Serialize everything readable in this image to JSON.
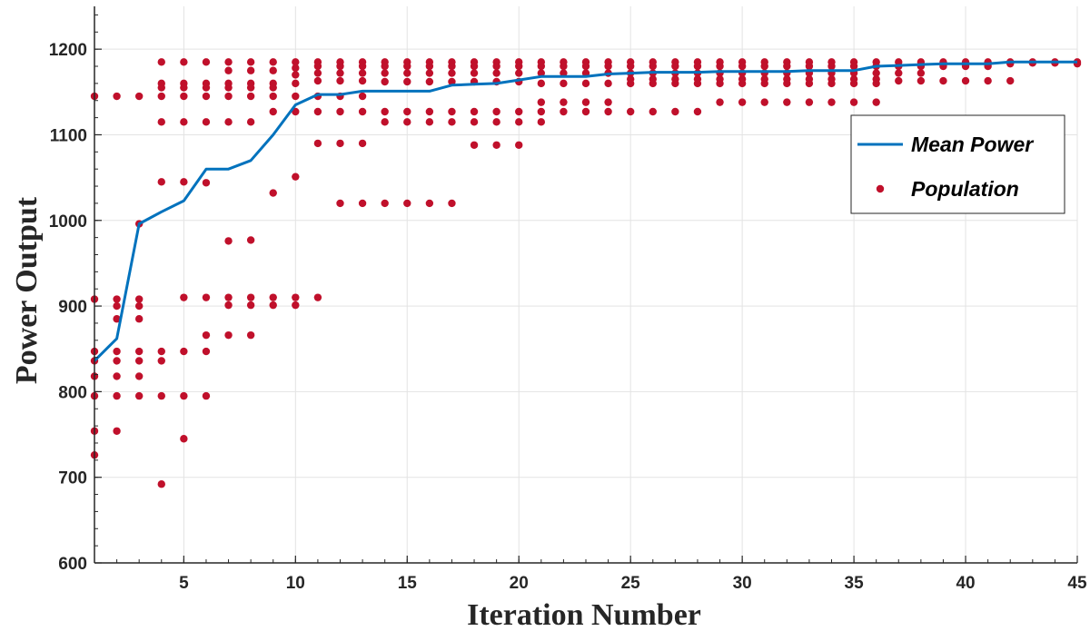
{
  "chart_data": {
    "type": "scatter",
    "xlabel": "Iteration Number",
    "ylabel": "Power Output",
    "xlim": [
      1,
      45
    ],
    "ylim": [
      600,
      1250
    ],
    "xticks": [
      5,
      10,
      15,
      20,
      25,
      30,
      35,
      40,
      45
    ],
    "yticks": [
      600,
      700,
      800,
      900,
      1000,
      1100,
      1200
    ],
    "grid": true,
    "legend_position": "right",
    "series": [
      {
        "name": "Mean Power",
        "kind": "line",
        "color": "#0072BD",
        "x": [
          1,
          2,
          3,
          4,
          5,
          6,
          7,
          8,
          9,
          10,
          11,
          12,
          13,
          14,
          15,
          16,
          17,
          18,
          19,
          20,
          21,
          22,
          23,
          24,
          25,
          26,
          27,
          28,
          29,
          30,
          31,
          32,
          33,
          34,
          35,
          36,
          37,
          38,
          39,
          40,
          41,
          42,
          43,
          44,
          45
        ],
        "y": [
          836,
          862,
          996,
          1010,
          1023,
          1060,
          1060,
          1070,
          1100,
          1135,
          1147,
          1147,
          1151,
          1151,
          1151,
          1151,
          1158,
          1159,
          1160,
          1164,
          1168,
          1168,
          1168,
          1171,
          1172,
          1173,
          1173,
          1173,
          1174,
          1174,
          1174,
          1174,
          1175,
          1175,
          1175,
          1180,
          1181,
          1182,
          1183,
          1183,
          1183,
          1185,
          1185,
          1185,
          1185
        ]
      },
      {
        "name": "Population",
        "kind": "scatter",
        "color": "#C0102B",
        "points": [
          [
            1,
            1145
          ],
          [
            1,
            908
          ],
          [
            1,
            847
          ],
          [
            1,
            836
          ],
          [
            1,
            818
          ],
          [
            1,
            795
          ],
          [
            1,
            754
          ],
          [
            1,
            726
          ],
          [
            2,
            1145
          ],
          [
            2,
            908
          ],
          [
            2,
            900
          ],
          [
            2,
            885
          ],
          [
            2,
            847
          ],
          [
            2,
            836
          ],
          [
            2,
            818
          ],
          [
            2,
            795
          ],
          [
            2,
            754
          ],
          [
            3,
            1145
          ],
          [
            3,
            996
          ],
          [
            3,
            908
          ],
          [
            3,
            900
          ],
          [
            3,
            885
          ],
          [
            3,
            847
          ],
          [
            3,
            836
          ],
          [
            3,
            818
          ],
          [
            3,
            795
          ],
          [
            4,
            1185
          ],
          [
            4,
            1160
          ],
          [
            4,
            1155
          ],
          [
            4,
            1145
          ],
          [
            4,
            1115
          ],
          [
            4,
            1045
          ],
          [
            4,
            847
          ],
          [
            4,
            836
          ],
          [
            4,
            795
          ],
          [
            4,
            692
          ],
          [
            5,
            1185
          ],
          [
            5,
            1160
          ],
          [
            5,
            1155
          ],
          [
            5,
            1145
          ],
          [
            5,
            1115
          ],
          [
            5,
            1045
          ],
          [
            5,
            910
          ],
          [
            5,
            847
          ],
          [
            5,
            795
          ],
          [
            5,
            745
          ],
          [
            6,
            1185
          ],
          [
            6,
            1160
          ],
          [
            6,
            1155
          ],
          [
            6,
            1145
          ],
          [
            6,
            1115
          ],
          [
            6,
            1044
          ],
          [
            6,
            910
          ],
          [
            6,
            866
          ],
          [
            6,
            847
          ],
          [
            6,
            795
          ],
          [
            7,
            1185
          ],
          [
            7,
            1175
          ],
          [
            7,
            1160
          ],
          [
            7,
            1155
          ],
          [
            7,
            1145
          ],
          [
            7,
            1115
          ],
          [
            7,
            976
          ],
          [
            7,
            910
          ],
          [
            7,
            901
          ],
          [
            7,
            866
          ],
          [
            8,
            1185
          ],
          [
            8,
            1175
          ],
          [
            8,
            1160
          ],
          [
            8,
            1155
          ],
          [
            8,
            1145
          ],
          [
            8,
            1115
          ],
          [
            8,
            977
          ],
          [
            8,
            910
          ],
          [
            8,
            901
          ],
          [
            8,
            866
          ],
          [
            9,
            1185
          ],
          [
            9,
            1175
          ],
          [
            9,
            1160
          ],
          [
            9,
            1155
          ],
          [
            9,
            1145
          ],
          [
            9,
            1127
          ],
          [
            9,
            1032
          ],
          [
            9,
            910
          ],
          [
            9,
            901
          ],
          [
            10,
            1185
          ],
          [
            10,
            1178
          ],
          [
            10,
            1170
          ],
          [
            10,
            1160
          ],
          [
            10,
            1145
          ],
          [
            10,
            1127
          ],
          [
            10,
            1051
          ],
          [
            10,
            910
          ],
          [
            10,
            901
          ],
          [
            11,
            1185
          ],
          [
            11,
            1180
          ],
          [
            11,
            1172
          ],
          [
            11,
            1163
          ],
          [
            11,
            1145
          ],
          [
            11,
            1127
          ],
          [
            11,
            1090
          ],
          [
            11,
            910
          ],
          [
            12,
            1185
          ],
          [
            12,
            1180
          ],
          [
            12,
            1172
          ],
          [
            12,
            1163
          ],
          [
            12,
            1145
          ],
          [
            12,
            1127
          ],
          [
            12,
            1090
          ],
          [
            12,
            1020
          ],
          [
            13,
            1185
          ],
          [
            13,
            1180
          ],
          [
            13,
            1172
          ],
          [
            13,
            1163
          ],
          [
            13,
            1145
          ],
          [
            13,
            1127
          ],
          [
            13,
            1090
          ],
          [
            13,
            1020
          ],
          [
            14,
            1185
          ],
          [
            14,
            1180
          ],
          [
            14,
            1172
          ],
          [
            14,
            1162
          ],
          [
            14,
            1127
          ],
          [
            14,
            1115
          ],
          [
            14,
            1020
          ],
          [
            15,
            1185
          ],
          [
            15,
            1180
          ],
          [
            15,
            1172
          ],
          [
            15,
            1162
          ],
          [
            15,
            1127
          ],
          [
            15,
            1115
          ],
          [
            15,
            1020
          ],
          [
            16,
            1185
          ],
          [
            16,
            1180
          ],
          [
            16,
            1172
          ],
          [
            16,
            1162
          ],
          [
            16,
            1127
          ],
          [
            16,
            1115
          ],
          [
            16,
            1020
          ],
          [
            17,
            1185
          ],
          [
            17,
            1180
          ],
          [
            17,
            1172
          ],
          [
            17,
            1162
          ],
          [
            17,
            1127
          ],
          [
            17,
            1115
          ],
          [
            17,
            1020
          ],
          [
            18,
            1185
          ],
          [
            18,
            1180
          ],
          [
            18,
            1172
          ],
          [
            18,
            1162
          ],
          [
            18,
            1127
          ],
          [
            18,
            1115
          ],
          [
            18,
            1088
          ],
          [
            19,
            1185
          ],
          [
            19,
            1180
          ],
          [
            19,
            1172
          ],
          [
            19,
            1162
          ],
          [
            19,
            1127
          ],
          [
            19,
            1115
          ],
          [
            19,
            1088
          ],
          [
            20,
            1185
          ],
          [
            20,
            1180
          ],
          [
            20,
            1172
          ],
          [
            20,
            1162
          ],
          [
            20,
            1127
          ],
          [
            20,
            1115
          ],
          [
            20,
            1088
          ],
          [
            21,
            1185
          ],
          [
            21,
            1180
          ],
          [
            21,
            1172
          ],
          [
            21,
            1160
          ],
          [
            21,
            1138
          ],
          [
            21,
            1127
          ],
          [
            21,
            1115
          ],
          [
            22,
            1185
          ],
          [
            22,
            1180
          ],
          [
            22,
            1172
          ],
          [
            22,
            1160
          ],
          [
            22,
            1138
          ],
          [
            22,
            1127
          ],
          [
            23,
            1185
          ],
          [
            23,
            1180
          ],
          [
            23,
            1172
          ],
          [
            23,
            1160
          ],
          [
            23,
            1138
          ],
          [
            23,
            1127
          ],
          [
            24,
            1185
          ],
          [
            24,
            1180
          ],
          [
            24,
            1172
          ],
          [
            24,
            1160
          ],
          [
            24,
            1138
          ],
          [
            24,
            1127
          ],
          [
            25,
            1185
          ],
          [
            25,
            1180
          ],
          [
            25,
            1172
          ],
          [
            25,
            1165
          ],
          [
            25,
            1160
          ],
          [
            25,
            1127
          ],
          [
            26,
            1185
          ],
          [
            26,
            1180
          ],
          [
            26,
            1172
          ],
          [
            26,
            1165
          ],
          [
            26,
            1160
          ],
          [
            26,
            1127
          ],
          [
            27,
            1185
          ],
          [
            27,
            1180
          ],
          [
            27,
            1172
          ],
          [
            27,
            1165
          ],
          [
            27,
            1160
          ],
          [
            27,
            1127
          ],
          [
            28,
            1185
          ],
          [
            28,
            1180
          ],
          [
            28,
            1172
          ],
          [
            28,
            1165
          ],
          [
            28,
            1160
          ],
          [
            28,
            1127
          ],
          [
            29,
            1185
          ],
          [
            29,
            1180
          ],
          [
            29,
            1172
          ],
          [
            29,
            1165
          ],
          [
            29,
            1160
          ],
          [
            29,
            1138
          ],
          [
            30,
            1185
          ],
          [
            30,
            1180
          ],
          [
            30,
            1172
          ],
          [
            30,
            1165
          ],
          [
            30,
            1160
          ],
          [
            30,
            1138
          ],
          [
            31,
            1185
          ],
          [
            31,
            1180
          ],
          [
            31,
            1172
          ],
          [
            31,
            1165
          ],
          [
            31,
            1160
          ],
          [
            31,
            1138
          ],
          [
            32,
            1185
          ],
          [
            32,
            1180
          ],
          [
            32,
            1172
          ],
          [
            32,
            1165
          ],
          [
            32,
            1160
          ],
          [
            32,
            1138
          ],
          [
            33,
            1185
          ],
          [
            33,
            1180
          ],
          [
            33,
            1172
          ],
          [
            33,
            1165
          ],
          [
            33,
            1160
          ],
          [
            33,
            1138
          ],
          [
            34,
            1185
          ],
          [
            34,
            1180
          ],
          [
            34,
            1172
          ],
          [
            34,
            1165
          ],
          [
            34,
            1160
          ],
          [
            34,
            1138
          ],
          [
            35,
            1185
          ],
          [
            35,
            1180
          ],
          [
            35,
            1172
          ],
          [
            35,
            1165
          ],
          [
            35,
            1160
          ],
          [
            35,
            1138
          ],
          [
            36,
            1185
          ],
          [
            36,
            1180
          ],
          [
            36,
            1172
          ],
          [
            36,
            1165
          ],
          [
            36,
            1160
          ],
          [
            36,
            1138
          ],
          [
            37,
            1185
          ],
          [
            37,
            1180
          ],
          [
            37,
            1172
          ],
          [
            37,
            1163
          ],
          [
            38,
            1185
          ],
          [
            38,
            1180
          ],
          [
            38,
            1172
          ],
          [
            38,
            1163
          ],
          [
            39,
            1185
          ],
          [
            39,
            1180
          ],
          [
            39,
            1163
          ],
          [
            40,
            1185
          ],
          [
            40,
            1180
          ],
          [
            40,
            1163
          ],
          [
            41,
            1185
          ],
          [
            41,
            1180
          ],
          [
            41,
            1163
          ],
          [
            42,
            1185
          ],
          [
            42,
            1183
          ],
          [
            42,
            1163
          ],
          [
            43,
            1185
          ],
          [
            43,
            1184
          ],
          [
            44,
            1185
          ],
          [
            44,
            1184
          ],
          [
            45,
            1185
          ],
          [
            45,
            1183
          ]
        ]
      }
    ]
  }
}
